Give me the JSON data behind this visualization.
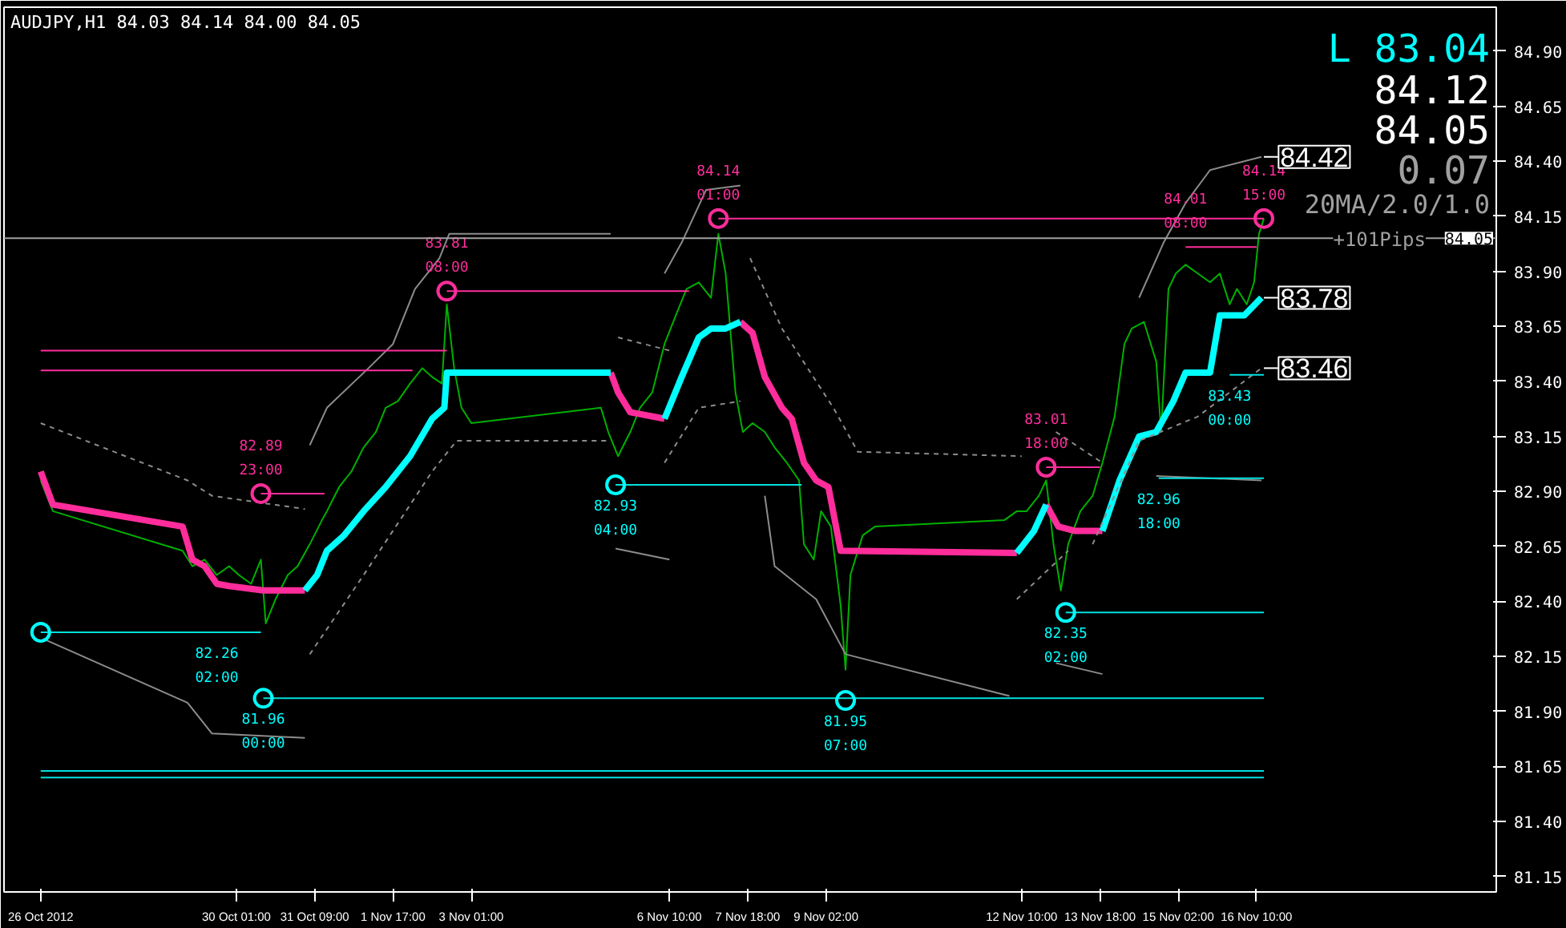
{
  "chart_data": {
    "type": "line",
    "title": "AUDJPY,H1 84.03 84.14 84.00 84.05",
    "xlim": [
      "2012-10-26T02:00",
      "2012-11-20T12:00"
    ],
    "ylim": [
      81.08,
      85.1
    ],
    "xticks": [
      {
        "value": "2012-10-26T17:00",
        "label": "26 Oct 2012"
      },
      {
        "value": "2012-10-30T01:00",
        "label": "30 Oct 01:00"
      },
      {
        "value": "2012-10-31T09:00",
        "label": "31 Oct 09:00"
      },
      {
        "value": "2012-11-01T17:00",
        "label": "1 Nov 17:00"
      },
      {
        "value": "2012-11-03T01:00",
        "label": "3 Nov 01:00"
      },
      {
        "value": "2012-11-06T10:00",
        "label": "6 Nov 10:00"
      },
      {
        "value": "2012-11-07T18:00",
        "label": "7 Nov 18:00"
      },
      {
        "value": "2012-11-09T02:00",
        "label": "9 Nov 02:00"
      },
      {
        "value": "2012-11-12T10:00",
        "label": "12 Nov 10:00"
      },
      {
        "value": "2012-11-13T18:00",
        "label": "13 Nov 18:00"
      },
      {
        "value": "2012-11-15T02:00",
        "label": "15 Nov 02:00"
      },
      {
        "value": "2012-11-16T10:00",
        "label": "16 Nov 10:00"
      }
    ],
    "yticks": [
      81.15,
      {
        "value": 81.4,
        "label": "81.40"
      },
      81.65,
      {
        "value": 81.9,
        "label": "81.90"
      },
      82.15,
      {
        "value": 82.4,
        "label": "82.40"
      },
      82.65,
      {
        "value": 82.9,
        "label": "82.90"
      },
      83.15,
      {
        "value": 83.4,
        "label": "83.40"
      },
      83.65,
      {
        "value": 83.9,
        "label": "83.90"
      },
      84.15,
      {
        "value": 84.4,
        "label": "84.40"
      },
      84.65,
      {
        "value": 84.9,
        "label": "84.90"
      }
    ],
    "grid": false,
    "ref_lines": [
      {
        "axis": "y",
        "value": 84.05,
        "label": "84.05",
        "color": "#a0a0a0"
      }
    ],
    "annotations": [
      "L 83.04",
      "84.12",
      "84.05",
      "0.07",
      "20MA/2.0/1.0",
      "+101Pips",
      {
        "text": "82.26\n02:00",
        "x": "2012-10-29T17:00",
        "y": 82.26
      },
      {
        "text": "82.89\n23:00",
        "x": "2012-10-30T11:00",
        "y": 82.89
      },
      {
        "text": "81.96\n00:00",
        "x": "2012-10-30T12:00",
        "y": 81.96
      },
      {
        "text": "83.81\n08:00",
        "x": "2012-11-02T15:00",
        "y": 83.81
      },
      {
        "text": "82.93\n04:00",
        "x": "2012-11-05T12:00",
        "y": 82.93
      },
      {
        "text": "84.14\n01:00",
        "x": "2012-11-07T06:00",
        "y": 84.14
      },
      {
        "text": "81.95\n07:00",
        "x": "2012-11-09T10:00",
        "y": 81.95
      },
      {
        "text": "83.01\n18:00",
        "x": "2012-11-12T20:00",
        "y": 83.01
      },
      {
        "text": "82.35\n02:00",
        "x": "2012-11-13T04:00",
        "y": 82.35
      },
      {
        "text": "82.96\n18:00",
        "x": "2012-11-14T18:00",
        "y": 82.96
      },
      {
        "text": "84.01\n08:00",
        "x": "2012-11-15T05:00",
        "y": 84.01
      },
      {
        "text": "83.43\n00:00",
        "x": "2012-11-15T23:00",
        "y": 83.43
      },
      {
        "text": "84.14\n15:00",
        "x": "2012-11-16T13:00",
        "y": 84.14
      }
    ],
    "series": [
      {
        "color": "#00b000",
        "x": [
          "2012-10-26T17:00",
          "2012-10-26T22:00",
          "2012-10-29T03:00",
          "2012-10-29T07:00",
          "2012-10-29T12:00",
          "2012-10-29T17:00",
          "2012-10-29T22:00",
          "2012-10-30T02:00",
          "2012-10-30T07:00",
          "2012-10-30T11:00",
          "2012-10-30T13:00",
          "2012-10-30T17:00",
          "2012-10-30T22:00",
          "2012-10-31T02:00",
          "2012-10-31T07:00",
          "2012-10-31T12:00",
          "2012-10-31T14:00",
          "2012-10-31T19:00",
          "2012-11-01T00:00",
          "2012-11-01T05:00",
          "2012-11-01T10:00",
          "2012-11-01T14:00",
          "2012-11-01T19:00",
          "2012-11-02T00:00",
          "2012-11-02T05:00",
          "2012-11-02T09:00",
          "2012-11-02T13:00",
          "2012-11-02T15:00",
          "2012-11-02T18:00",
          "2012-11-02T21:00",
          "2012-11-03T01:00",
          "2012-11-05T06:00",
          "2012-11-05T09:00",
          "2012-11-05T13:00",
          "2012-11-05T18:00",
          "2012-11-05T22:00",
          "2012-11-06T03:00",
          "2012-11-06T08:00",
          "2012-11-06T13:00",
          "2012-11-06T17:00",
          "2012-11-06T22:00",
          "2012-11-07T03:00",
          "2012-11-07T06:00",
          "2012-11-07T09:00",
          "2012-11-07T13:00",
          "2012-11-07T16:00",
          "2012-11-07T20:00",
          "2012-11-08T01:00",
          "2012-11-08T05:00",
          "2012-11-08T10:00",
          "2012-11-08T15:00",
          "2012-11-08T17:00",
          "2012-11-08T21:00",
          "2012-11-09T00:00",
          "2012-11-09T04:00",
          "2012-11-09T08:00",
          "2012-11-09T10:00",
          "2012-11-09T12:00",
          "2012-11-09T17:00",
          "2012-11-09T22:00",
          "2012-11-12T03:00",
          "2012-11-12T08:00",
          "2012-11-12T12:00",
          "2012-11-12T17:00",
          "2012-11-12T20:00",
          "2012-11-12T23:00",
          "2012-11-13T02:00",
          "2012-11-13T05:00",
          "2012-11-13T10:00",
          "2012-11-13T15:00",
          "2012-11-13T19:00",
          "2012-11-14T00:00",
          "2012-11-14T04:00",
          "2012-11-14T07:00",
          "2012-11-14T12:00",
          "2012-11-14T17:00",
          "2012-11-14T19:00",
          "2012-11-14T22:00",
          "2012-11-15T01:00",
          "2012-11-15T05:00",
          "2012-11-15T10:00",
          "2012-11-15T15:00",
          "2012-11-15T19:00",
          "2012-11-15T23:00",
          "2012-11-16T02:00",
          "2012-11-16T06:00",
          "2012-11-16T09:00",
          "2012-11-16T11:00",
          "2012-11-16T13:00"
        ],
        "values": [
          82.95,
          82.81,
          82.63,
          82.56,
          82.59,
          82.52,
          82.56,
          82.52,
          82.48,
          82.59,
          82.3,
          82.41,
          82.52,
          82.56,
          82.66,
          82.77,
          82.81,
          82.92,
          82.99,
          83.1,
          83.17,
          83.28,
          83.31,
          83.39,
          83.46,
          83.42,
          83.39,
          83.75,
          83.46,
          83.28,
          83.21,
          83.28,
          83.17,
          83.06,
          83.17,
          83.28,
          83.35,
          83.57,
          83.71,
          83.82,
          83.85,
          83.78,
          84.07,
          83.89,
          83.35,
          83.17,
          83.21,
          83.17,
          83.1,
          83.03,
          82.95,
          82.66,
          82.59,
          82.81,
          82.74,
          82.38,
          82.09,
          82.52,
          82.7,
          82.74,
          82.77,
          82.81,
          82.81,
          82.88,
          82.95,
          82.66,
          82.45,
          82.66,
          82.81,
          82.88,
          83.03,
          83.24,
          83.57,
          83.64,
          83.67,
          83.49,
          83.17,
          83.82,
          83.89,
          83.93,
          83.89,
          83.85,
          83.89,
          83.75,
          83.82,
          83.75,
          83.85,
          84.07,
          84.14
        ]
      },
      {
        "color": "#ff2d9b",
        "x": [
          "2012-10-26T17:00",
          "2012-10-26T22:00",
          "2012-10-29T03:00",
          "2012-10-29T07:00",
          "2012-10-29T12:00",
          "2012-10-29T17:00",
          "2012-10-29T22:00",
          "2012-10-30T05:00",
          "2012-10-30T12:00",
          "2012-10-31T05:00",
          "2012-10-31T06:00",
          "2012-11-05T10:00",
          "2012-11-05T13:00",
          "2012-11-05T18:00",
          "2012-11-06T08:00",
          "2012-11-06T09:00",
          "2012-11-07T15:00",
          "2012-11-07T20:00",
          "2012-11-08T01:00",
          "2012-11-08T08:00",
          "2012-11-08T12:00",
          "2012-11-08T17:00",
          "2012-11-08T22:00",
          "2012-11-09T03:00",
          "2012-11-09T08:00",
          "2012-11-12T08:00",
          "2012-11-12T09:00",
          "2012-11-12T20:00",
          "2012-11-13T01:00",
          "2012-11-13T08:00",
          "2012-11-13T19:00"
        ],
        "values": [
          82.99,
          82.84,
          82.74,
          82.59,
          82.56,
          82.48,
          82.47,
          82.46,
          82.45,
          82.45,
          null,
          83.44,
          83.35,
          83.26,
          83.23,
          null,
          83.67,
          83.62,
          83.42,
          83.28,
          83.23,
          83.03,
          82.95,
          82.92,
          82.63,
          82.62,
          null,
          82.84,
          82.74,
          82.72,
          82.72
        ]
      },
      {
        "color": "#00ffff",
        "x": [
          "2012-10-31T05:00",
          "2012-10-31T10:00",
          "2012-10-31T14:00",
          "2012-10-31T21:00",
          "2012-11-01T05:00",
          "2012-11-01T14:00",
          "2012-11-02T00:00",
          "2012-11-02T09:00",
          "2012-11-02T14:00",
          "2012-11-02T15:00",
          "2012-11-05T10:00",
          "2012-11-05T11:00",
          "2012-11-06T08:00",
          "2012-11-06T15:00",
          "2012-11-06T22:00",
          "2012-11-07T03:00",
          "2012-11-07T09:00",
          "2012-11-07T15:00",
          "2012-11-07T16:00",
          "2012-11-12T08:00",
          "2012-11-12T15:00",
          "2012-11-12T20:00",
          "2012-11-12T21:00",
          "2012-11-13T19:00",
          "2012-11-14T02:00",
          "2012-11-14T10:00",
          "2012-11-14T17:00",
          "2012-11-15T00:00",
          "2012-11-15T05:00",
          "2012-11-15T15:00",
          "2012-11-15T19:00",
          "2012-11-16T05:00",
          "2012-11-16T12:00"
        ],
        "values": [
          82.45,
          82.52,
          82.63,
          82.7,
          82.81,
          82.92,
          83.06,
          83.23,
          83.28,
          83.44,
          83.44,
          null,
          83.23,
          83.42,
          83.6,
          83.64,
          83.64,
          83.67,
          null,
          82.62,
          82.72,
          82.84,
          null,
          82.72,
          82.95,
          83.15,
          83.17,
          83.31,
          83.44,
          83.44,
          83.7,
          83.7,
          83.78
        ],
        "value_labels": [
          null,
          null,
          null,
          null,
          null,
          null,
          null,
          null,
          null,
          null,
          null,
          null,
          null,
          null,
          null,
          null,
          null,
          null,
          null,
          null,
          null,
          null,
          null,
          null,
          null,
          null,
          null,
          null,
          null,
          null,
          null,
          null,
          "83.78"
        ]
      },
      {
        "color": "#8c8c8c",
        "x": [
          "2012-10-31T07:00",
          "2012-10-31T14:00",
          "2012-11-01T07:00",
          "2012-11-01T17:00",
          "2012-11-02T02:00",
          "2012-11-02T12:00",
          "2012-11-02T16:00",
          "2012-11-05T10:00",
          "2012-11-05T11:00",
          "2012-11-06T08:00",
          "2012-11-06T15:00",
          "2012-11-07T01:00",
          "2012-11-07T15:00",
          "2012-11-07T16:00",
          "2012-11-14T10:00",
          "2012-11-14T20:00",
          "2012-11-15T05:00",
          "2012-11-15T15:00",
          "2012-11-16T12:00"
        ],
        "values": [
          83.11,
          83.28,
          83.46,
          83.57,
          83.82,
          83.96,
          84.07,
          84.07,
          null,
          83.89,
          84.03,
          84.27,
          84.29,
          null,
          83.78,
          84.03,
          84.21,
          84.36,
          84.42
        ],
        "value_labels": [
          null,
          null,
          null,
          null,
          null,
          null,
          null,
          null,
          null,
          null,
          null,
          null,
          null,
          null,
          null,
          null,
          null,
          null,
          "84.42"
        ]
      },
      {
        "color": "#8c8c8c",
        "x": [
          "2012-10-26T18:00",
          "2012-10-29T05:00",
          "2012-10-29T15:00",
          "2012-10-31T05:00",
          "2012-10-31T06:00",
          "2012-11-05T12:00",
          "2012-11-06T10:00",
          "2012-11-06T11:00",
          "2012-11-08T01:00",
          "2012-11-08T05:00",
          "2012-11-08T22:00",
          "2012-11-09T10:00",
          "2012-11-12T05:00",
          "2012-11-12T06:00",
          "2012-11-13T00:00",
          "2012-11-13T19:00",
          "2012-11-13T20:00",
          "2012-11-14T17:00",
          "2012-11-16T12:00"
        ],
        "values": [
          82.23,
          81.94,
          81.8,
          81.78,
          null,
          82.64,
          82.59,
          null,
          82.88,
          82.56,
          82.41,
          82.16,
          81.97,
          null,
          82.12,
          82.07,
          null,
          82.97,
          82.95
        ]
      },
      {
        "color": "#8c8c8c",
        "line_style": "dashed",
        "x": [
          "2012-10-26T17:00",
          "2012-10-29T05:00",
          "2012-10-29T15:00",
          "2012-10-31T05:00",
          "2012-10-31T06:00",
          "2012-11-05T13:00",
          "2012-11-06T10:00",
          "2012-11-06T11:00",
          "2012-11-07T19:00",
          "2012-11-08T08:00",
          "2012-11-09T05:00",
          "2012-11-09T15:00",
          "2012-11-12T10:00",
          "2012-11-12T11:00",
          "2012-11-13T00:00",
          "2012-11-13T19:00"
        ],
        "values": [
          83.21,
          82.95,
          82.88,
          82.82,
          null,
          83.6,
          83.54,
          null,
          83.96,
          83.64,
          83.28,
          83.08,
          83.06,
          null,
          83.17,
          83.03
        ]
      },
      {
        "color": "#8c8c8c",
        "line_style": "dashed",
        "x": [
          "2012-10-31T07:00",
          "2012-11-01T05:00",
          "2012-11-02T09:00",
          "2012-11-02T19:00",
          "2012-11-05T10:00",
          "2012-11-05T11:00",
          "2012-11-06T08:00",
          "2012-11-06T22:00",
          "2012-11-07T15:00",
          "2012-11-07T16:00",
          "2012-11-12T08:00",
          "2012-11-13T05:00",
          "2012-11-13T06:00",
          "2012-11-13T15:00",
          "2012-11-14T10:00",
          "2012-11-15T10:00",
          "2012-11-16T12:00"
        ],
        "values": [
          82.16,
          82.52,
          82.99,
          83.13,
          83.13,
          null,
          83.03,
          83.28,
          83.31,
          null,
          82.41,
          82.63,
          null,
          82.66,
          83.13,
          83.24,
          83.46
        ],
        "value_labels": [
          null,
          null,
          null,
          null,
          null,
          null,
          null,
          null,
          null,
          null,
          null,
          null,
          null,
          null,
          null,
          null,
          "83.46"
        ]
      },
      {
        "color": "#ff2d9b",
        "x": [
          "2012-10-26T17:00",
          "2012-11-02T15:00"
        ],
        "values": [
          83.54,
          83.54
        ]
      },
      {
        "color": "#ff2d9b",
        "x": [
          "2012-10-26T17:00",
          "2012-11-02T01:00"
        ],
        "values": [
          83.45,
          83.45
        ]
      },
      {
        "color": "#ff2d9b",
        "x": [
          "2012-10-30T11:00",
          "2012-10-31T13:00"
        ],
        "values": [
          82.89,
          82.89
        ]
      },
      {
        "color": "#ff2d9b",
        "x": [
          "2012-11-02T15:00",
          "2012-11-06T18:00"
        ],
        "values": [
          83.81,
          83.81
        ]
      },
      {
        "color": "#ff2d9b",
        "x": [
          "2012-11-07T06:00",
          "2012-11-16T13:00"
        ],
        "values": [
          84.14,
          84.14
        ]
      },
      {
        "color": "#ff2d9b",
        "x": [
          "2012-11-12T20:00",
          "2012-11-13T18:00"
        ],
        "values": [
          83.01,
          83.01
        ]
      },
      {
        "color": "#ff2d9b",
        "x": [
          "2012-11-15T05:00",
          "2012-11-16T10:00"
        ],
        "values": [
          84.01,
          84.01
        ]
      },
      {
        "color": "#00e0e0",
        "x": [
          "2012-10-26T17:00",
          "2012-10-29T17:00",
          "2012-10-30T11:00"
        ],
        "values": [
          82.26,
          82.26,
          82.26
        ]
      },
      {
        "color": "#00e0e0",
        "x": [
          "2012-10-30T12:00",
          "2012-11-16T13:00"
        ],
        "values": [
          81.96,
          81.96
        ]
      },
      {
        "color": "#00e0e0",
        "x": [
          "2012-11-05T12:00",
          "2012-11-08T16:00"
        ],
        "values": [
          82.93,
          82.93
        ]
      },
      {
        "color": "#00e0e0",
        "x": [
          "2012-11-13T04:00",
          "2012-11-16T13:00"
        ],
        "values": [
          82.35,
          82.35
        ]
      },
      {
        "color": "#00e0e0",
        "x": [
          "2012-11-14T18:00",
          "2012-11-16T13:00"
        ],
        "values": [
          82.96,
          82.96
        ]
      },
      {
        "color": "#00e0e0",
        "x": [
          "2012-11-15T23:00",
          "2012-11-16T13:00"
        ],
        "values": [
          83.43,
          83.43
        ]
      },
      {
        "color": "#00e0e0",
        "x": [
          "2012-10-26T17:00",
          "2012-11-16T13:00"
        ],
        "values": [
          81.63,
          81.63
        ]
      },
      {
        "color": "#00e0e0",
        "x": [
          "2012-10-26T17:00",
          "2012-11-16T13:00"
        ],
        "values": [
          81.6,
          81.6
        ]
      },
      {
        "type": "scatter",
        "marker": "circle",
        "color": "#ff2d9b",
        "x": [
          "2012-10-30T11:00",
          "2012-11-02T15:00",
          "2012-11-07T06:00",
          "2012-11-12T20:00",
          "2012-11-16T13:00"
        ],
        "values": [
          82.89,
          83.81,
          84.14,
          83.01,
          84.14
        ]
      },
      {
        "type": "scatter",
        "marker": "circle",
        "color": "#00ffff",
        "x": [
          "2012-10-26T17:00",
          "2012-10-30T12:00",
          "2012-11-05T12:00",
          "2012-11-09T10:00",
          "2012-11-13T04:00"
        ],
        "values": [
          82.26,
          81.96,
          82.93,
          81.95,
          82.35
        ]
      }
    ]
  }
}
